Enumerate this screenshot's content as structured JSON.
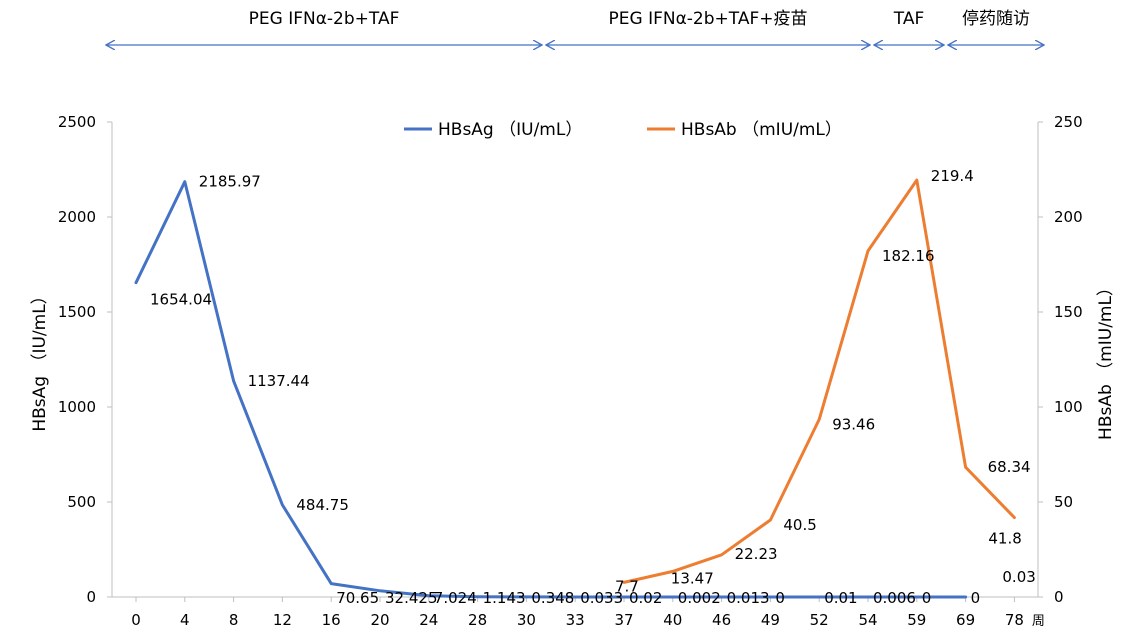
{
  "colors": {
    "hbsag": "#4472C4",
    "hbsab": "#ED7D31",
    "phase_arrow": "#4472C4",
    "axis": "#BFBFBF"
  },
  "phases": [
    {
      "label": "PEG IFNα-2b+TAF",
      "from": "0",
      "to": "33"
    },
    {
      "label": "PEG IFNα-2b+TAF+疫苗",
      "from": "33",
      "to": "54"
    },
    {
      "label": "TAF",
      "from": "54",
      "to": "59"
    },
    {
      "label": "停药随访",
      "from": "59",
      "to": "78"
    }
  ],
  "chart_data": {
    "type": "line",
    "categories": [
      "0",
      "4",
      "8",
      "12",
      "16",
      "20",
      "24",
      "28",
      "30",
      "33",
      "37",
      "40",
      "46",
      "49",
      "52",
      "54",
      "59",
      "69",
      "78"
    ],
    "x_unit_label": "周",
    "left_axis": {
      "label": "HBsAg （IU/mL）",
      "ylim": [
        0,
        2500
      ],
      "ticks": [
        0,
        500,
        1000,
        1500,
        2000,
        2500
      ]
    },
    "right_axis": {
      "label": "HBsAb （mIU/mL）",
      "ylim": [
        0,
        250
      ],
      "ticks": [
        0,
        50,
        100,
        150,
        200,
        250
      ]
    },
    "series": [
      {
        "name": "HBsAg （IU/mL）",
        "axis": "left",
        "values": [
          1654.04,
          2185.97,
          1137.44,
          484.75,
          70.65,
          32.425,
          7.024,
          1.143,
          0.348,
          0.033,
          0.02,
          0.002,
          0.013,
          0,
          0.01,
          0.006,
          0,
          0,
          null
        ],
        "labels": [
          "1654.04",
          "2185.97",
          "1137.44",
          "484.75",
          "70.65",
          "32.425",
          "7.024",
          "1.143",
          "0.348",
          "0.033",
          "0.02",
          "0.002",
          "0.013",
          "0",
          "0.01",
          "0.006",
          "0",
          "0",
          ""
        ]
      },
      {
        "name": "HBsAb （mIU/mL）",
        "axis": "right",
        "values": [
          null,
          null,
          null,
          null,
          null,
          null,
          null,
          null,
          null,
          null,
          7.7,
          13.47,
          22.23,
          40.5,
          93.46,
          182.16,
          219.4,
          68.34,
          41.8
        ],
        "labels": [
          "",
          "",
          "",
          "",
          "",
          "",
          "",
          "",
          "",
          "",
          "7.7",
          "13.47",
          "22.23",
          "40.5",
          "93.46",
          "182.16",
          "219.4",
          "68.34",
          "41.8"
        ]
      }
    ],
    "extra_labels": [
      {
        "category": "78",
        "text": "0.03"
      }
    ],
    "legend_position": "top-center",
    "grid": false
  }
}
